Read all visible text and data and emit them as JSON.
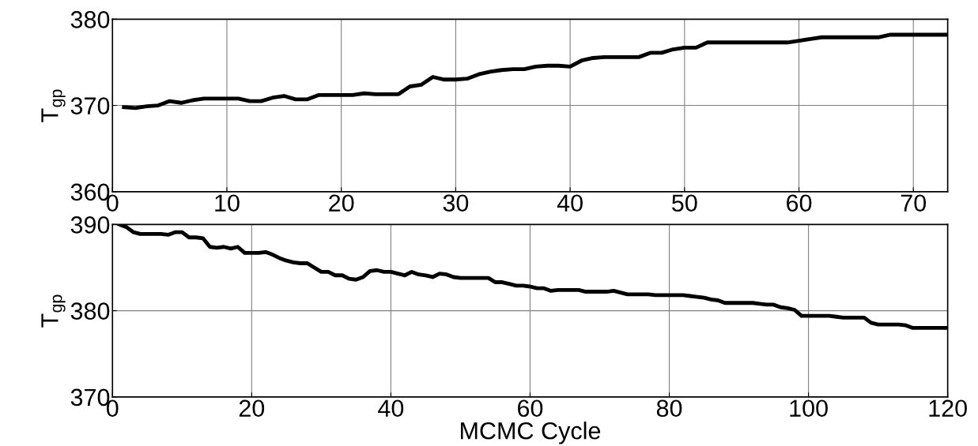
{
  "chart_data": [
    {
      "type": "line",
      "ylabel": "T$_{gp}$",
      "xlim": [
        0,
        73
      ],
      "xticks": [
        0,
        10,
        20,
        30,
        40,
        50,
        60,
        70
      ],
      "ylim": [
        360,
        380
      ],
      "yticks": [
        360,
        370,
        380
      ],
      "grid": true,
      "marker": "none",
      "line_style": "solid",
      "series": [
        {
          "color": "#000000",
          "x": [
            1,
            2,
            3,
            4,
            5,
            6,
            7,
            8,
            9,
            10,
            11,
            12,
            13,
            14,
            15,
            16,
            17,
            18,
            19,
            20,
            21,
            22,
            23,
            24,
            25,
            26,
            27,
            28,
            29,
            30,
            31,
            32,
            33,
            34,
            35,
            36,
            37,
            38,
            39,
            40,
            41,
            42,
            43,
            44,
            45,
            46,
            47,
            48,
            49,
            50,
            51,
            52,
            53,
            54,
            55,
            56,
            57,
            58,
            59,
            60,
            61,
            62,
            63,
            64,
            65,
            66,
            67,
            68,
            69,
            70,
            71,
            72,
            73
          ],
          "values": [
            369.8,
            369.7,
            369.9,
            370.0,
            370.5,
            370.3,
            370.6,
            370.8,
            370.8,
            370.8,
            370.8,
            370.5,
            370.5,
            370.9,
            371.1,
            370.7,
            370.7,
            371.2,
            371.2,
            371.2,
            371.2,
            371.4,
            371.3,
            371.3,
            371.3,
            372.2,
            372.4,
            373.3,
            373.0,
            373.0,
            373.1,
            373.6,
            373.9,
            374.1,
            374.2,
            374.2,
            374.5,
            374.6,
            374.6,
            374.5,
            375.2,
            375.5,
            375.6,
            375.6,
            375.6,
            375.6,
            376.1,
            376.1,
            376.5,
            376.7,
            376.7,
            377.3,
            377.3,
            377.3,
            377.3,
            377.3,
            377.3,
            377.3,
            377.3,
            377.5,
            377.7,
            377.9,
            377.9,
            377.9,
            377.9,
            377.9,
            377.9,
            378.2,
            378.2,
            378.2,
            378.2,
            378.2,
            378.2
          ]
        }
      ]
    },
    {
      "type": "line",
      "ylabel": "T$_{gp}$",
      "xlabel": "MCMC Cycle",
      "xlim": [
        0,
        120
      ],
      "xticks": [
        0,
        20,
        40,
        60,
        80,
        100,
        120
      ],
      "ylim": [
        370,
        390
      ],
      "yticks": [
        370,
        380,
        390
      ],
      "grid": true,
      "marker": "none",
      "line_style": "solid",
      "series": [
        {
          "color": "#000000",
          "x": [
            1,
            2,
            3,
            4,
            5,
            6,
            7,
            8,
            9,
            10,
            11,
            12,
            13,
            14,
            15,
            16,
            17,
            18,
            19,
            20,
            21,
            22,
            23,
            24,
            25,
            26,
            27,
            28,
            29,
            30,
            31,
            32,
            33,
            34,
            35,
            36,
            37,
            38,
            39,
            40,
            41,
            42,
            43,
            44,
            45,
            46,
            47,
            48,
            49,
            50,
            51,
            52,
            53,
            54,
            55,
            56,
            57,
            58,
            59,
            60,
            61,
            62,
            63,
            64,
            65,
            66,
            67,
            68,
            69,
            70,
            71,
            72,
            73,
            74,
            75,
            76,
            77,
            78,
            79,
            80,
            81,
            82,
            83,
            84,
            85,
            86,
            87,
            88,
            89,
            90,
            91,
            92,
            93,
            94,
            95,
            96,
            97,
            98,
            99,
            100,
            101,
            102,
            103,
            104,
            105,
            106,
            107,
            108,
            109,
            110,
            111,
            112,
            113,
            114,
            115,
            116,
            117,
            118,
            119,
            120
          ],
          "values": [
            390.0,
            389.7,
            389.1,
            388.9,
            388.9,
            388.9,
            388.9,
            388.8,
            389.1,
            389.1,
            388.5,
            388.5,
            388.4,
            387.4,
            387.3,
            387.4,
            387.2,
            387.4,
            386.7,
            386.7,
            386.7,
            386.8,
            386.5,
            386.1,
            385.8,
            385.6,
            385.5,
            385.5,
            385.0,
            384.5,
            384.5,
            384.1,
            384.1,
            383.7,
            383.6,
            383.9,
            384.6,
            384.7,
            384.5,
            384.5,
            384.3,
            384.1,
            384.5,
            384.2,
            384.1,
            383.9,
            384.3,
            384.2,
            383.9,
            383.8,
            383.8,
            383.8,
            383.8,
            383.8,
            383.3,
            383.3,
            383.1,
            382.9,
            382.9,
            382.8,
            382.6,
            382.6,
            382.3,
            382.4,
            382.4,
            382.4,
            382.4,
            382.2,
            382.2,
            382.2,
            382.2,
            382.3,
            382.1,
            381.9,
            381.9,
            381.9,
            381.9,
            381.8,
            381.8,
            381.8,
            381.8,
            381.8,
            381.7,
            381.6,
            381.5,
            381.3,
            381.2,
            380.9,
            380.9,
            380.9,
            380.9,
            380.9,
            380.8,
            380.7,
            380.7,
            380.4,
            380.3,
            380.1,
            379.4,
            379.4,
            379.4,
            379.4,
            379.4,
            379.3,
            379.2,
            379.2,
            379.2,
            379.2,
            378.6,
            378.4,
            378.4,
            378.4,
            378.4,
            378.3,
            378.0,
            378.0,
            378.0,
            378.0,
            378.0,
            378.0
          ]
        }
      ]
    }
  ]
}
